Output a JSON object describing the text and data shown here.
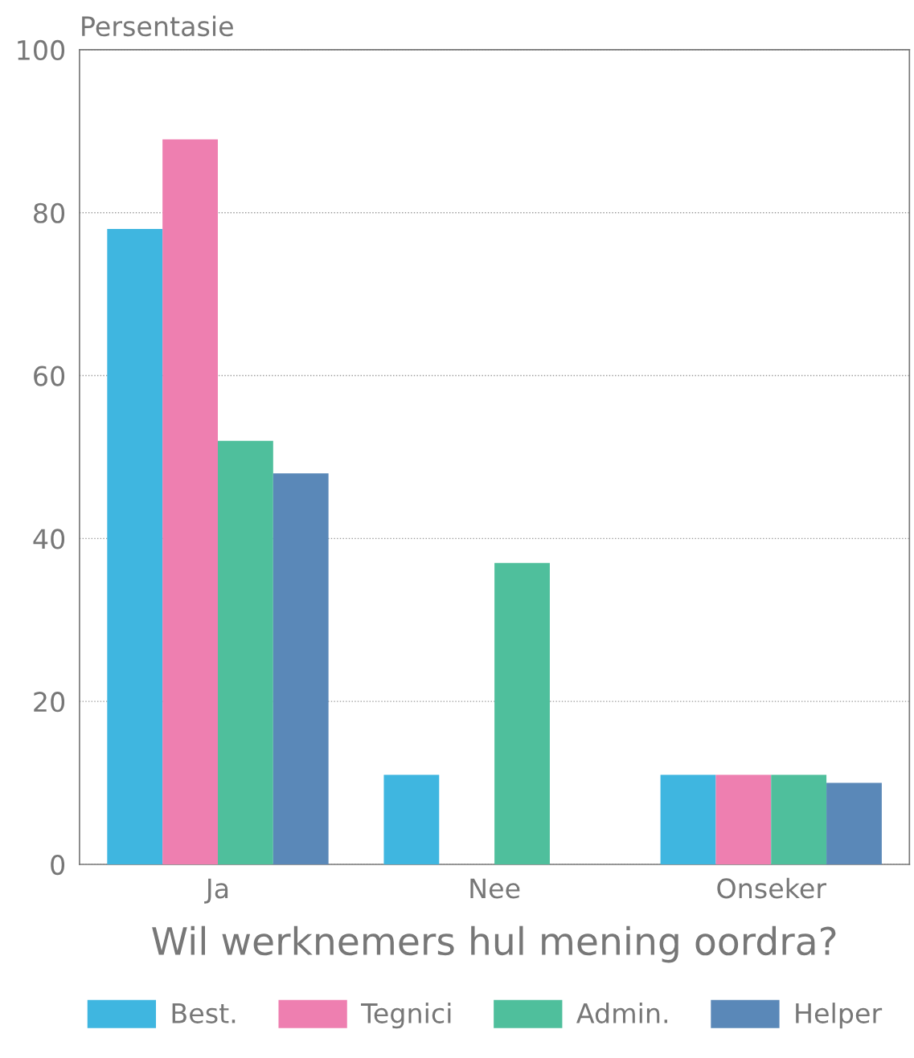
{
  "chart_data": {
    "type": "bar",
    "xlabel": "Wil werknemers hul mening oordra?",
    "ylabel": "Persentasie",
    "categories": [
      "Ja",
      "Nee",
      "Onseker"
    ],
    "series": [
      {
        "name": "Best.",
        "color": "#3fb6e0",
        "values": [
          78,
          11,
          11
        ]
      },
      {
        "name": "Tegnici",
        "color": "#ee7fb0",
        "values": [
          89,
          null,
          11
        ]
      },
      {
        "name": "Admin.",
        "color": "#4fbf9c",
        "values": [
          52,
          37,
          11
        ]
      },
      {
        "name": "Helper",
        "color": "#5a88b8",
        "values": [
          48,
          null,
          10
        ]
      }
    ],
    "ylim": [
      0,
      100
    ],
    "yticks": [
      0,
      20,
      40,
      60,
      80,
      100
    ],
    "grid": "y",
    "legend": "bottom"
  }
}
